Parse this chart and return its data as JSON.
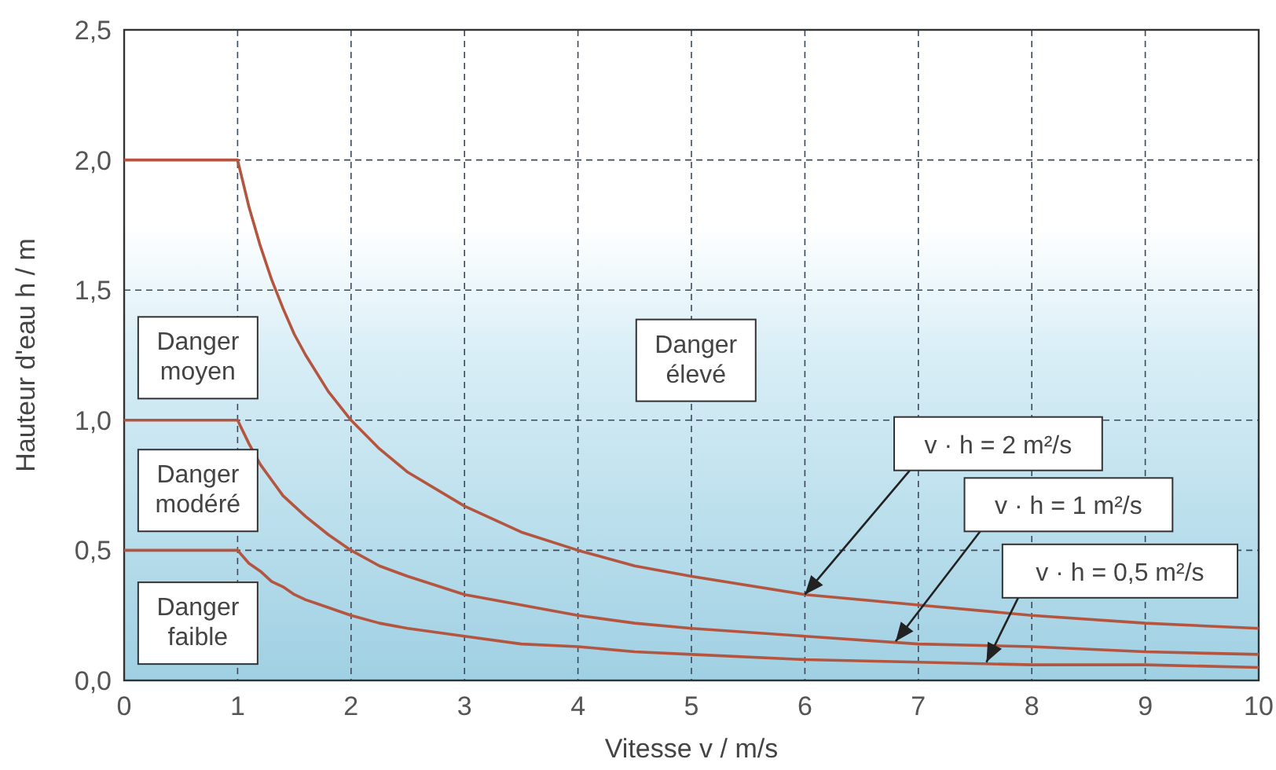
{
  "chart_data": {
    "type": "line",
    "xlabel": "Vitesse v / m/s",
    "ylabel": "Hauteur d'eau h / m",
    "xlim": [
      0,
      10
    ],
    "ylim": [
      0,
      2.5
    ],
    "xticks": [
      0,
      1,
      2,
      3,
      4,
      5,
      6,
      7,
      8,
      9,
      10
    ],
    "yticks": [
      {
        "value": 0,
        "label": "0,0"
      },
      {
        "value": 0.5,
        "label": "0,5"
      },
      {
        "value": 1,
        "label": "1,0"
      },
      {
        "value": 1.5,
        "label": "1,5"
      },
      {
        "value": 2,
        "label": "2,0"
      },
      {
        "value": 2.5,
        "label": "2,5"
      }
    ],
    "grid": true,
    "line_style": "solid",
    "marker": "none",
    "x": [
      0,
      1,
      1.1,
      1.2,
      1.3,
      1.4,
      1.5,
      1.6,
      1.8,
      2,
      2.25,
      2.5,
      3,
      3.5,
      4,
      4.5,
      5,
      6,
      7,
      8,
      9,
      10
    ],
    "series": [
      {
        "color": "#b4553f",
        "values": [
          2,
          2,
          1.82,
          1.67,
          1.54,
          1.43,
          1.33,
          1.25,
          1.11,
          1,
          0.89,
          0.8,
          0.67,
          0.57,
          0.5,
          0.44,
          0.4,
          0.33,
          0.29,
          0.25,
          0.22,
          0.2
        ]
      },
      {
        "color": "#b4553f",
        "values": [
          1,
          1,
          0.91,
          0.83,
          0.77,
          0.71,
          0.67,
          0.63,
          0.56,
          0.5,
          0.44,
          0.4,
          0.33,
          0.29,
          0.25,
          0.22,
          0.2,
          0.17,
          0.14,
          0.13,
          0.11,
          0.1
        ]
      },
      {
        "color": "#b4553f",
        "values": [
          0.5,
          0.5,
          0.45,
          0.42,
          0.38,
          0.36,
          0.33,
          0.31,
          0.28,
          0.25,
          0.22,
          0.2,
          0.17,
          0.14,
          0.13,
          0.11,
          0.1,
          0.08,
          0.07,
          0.06,
          0.06,
          0.05
        ]
      }
    ],
    "annotations": [
      "Danger moyen",
      "Danger modéré",
      "Danger faible",
      "Danger élevé",
      {
        "text": "v · h = 2 m²/s",
        "x": 6,
        "y": 0.33
      },
      {
        "text": "v · h = 1 m²/s",
        "x": 6.8,
        "y": 0.15
      },
      {
        "text": "v · h = 0,5 m²/s",
        "x": 7.6,
        "y": 0.07
      }
    ]
  }
}
